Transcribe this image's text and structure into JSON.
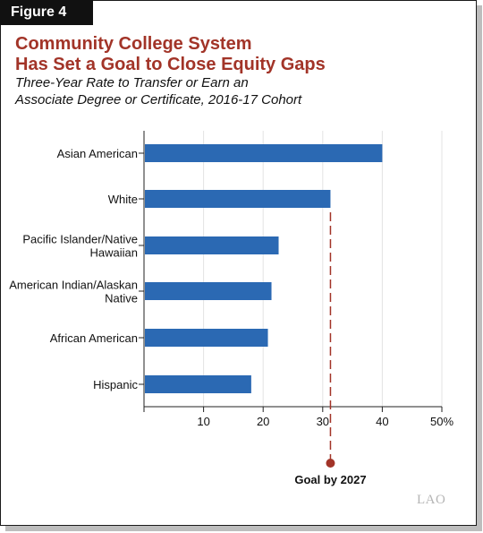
{
  "figure_label": "Figure 4",
  "title_lines": [
    "Community College System",
    "Has Set a Goal to Close Equity Gaps"
  ],
  "subtitle_lines": [
    "Three-Year Rate to Transfer or Earn an",
    "Associate Degree or Certificate, 2016-17 Cohort"
  ],
  "logo_text": "LAO",
  "colors": {
    "bar": "#2b69b3",
    "goal": "#a23428",
    "title": "#a23428"
  },
  "chart_data": {
    "type": "bar",
    "orientation": "horizontal",
    "categories": [
      [
        "Asian American"
      ],
      [
        "White"
      ],
      [
        "Pacific Islander/Native",
        "Hawaiian"
      ],
      [
        "American Indian/Alaskan",
        "Native"
      ],
      [
        "African American"
      ],
      [
        "Hispanic"
      ]
    ],
    "values": [
      40,
      31.3,
      22.6,
      21.4,
      20.8,
      18
    ],
    "x_ticks": [
      "",
      "10",
      "20",
      "30",
      "40",
      "50%"
    ],
    "xlim": [
      0,
      50
    ],
    "grid": "vertical",
    "goal": {
      "value": 31.3,
      "label": "Goal by 2027"
    }
  }
}
